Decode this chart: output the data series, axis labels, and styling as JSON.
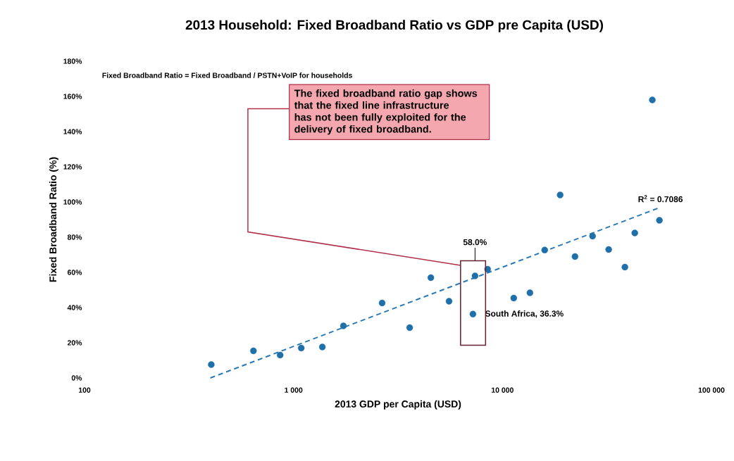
{
  "chart_data": {
    "type": "scatter",
    "title": "2013 Household: Fixed Broadband Ratio vs GDP pre Capita (USD)",
    "subtitle": "Fixed Broadband Ratio = Fixed Broadband / PSTN+VoIP for households",
    "xlabel": "2013 GDP per Capita (USD)",
    "ylabel": "Fixed Broadband Ratio (%)",
    "series": [
      {
        "marker": "circle",
        "color": "#1f6fa8",
        "x": [
          404,
          643,
          863,
          1089,
          1374,
          1733,
          2655,
          3597,
          4541,
          5550,
          7220,
          7390,
          8490,
          11320,
          13530,
          15920,
          18880,
          22230,
          26980,
          32220,
          38530,
          42960,
          52120,
          56360
        ],
        "values": [
          7.6,
          15.4,
          13,
          17,
          17.6,
          29.6,
          42.6,
          28.6,
          57,
          43.6,
          36.3,
          58.0,
          61.8,
          45.4,
          48.4,
          72.7,
          104,
          69,
          80.6,
          73,
          63,
          82.4,
          158,
          89.6
        ]
      },
      {
        "type": "line",
        "marker": "none",
        "color": "#2a7ab8",
        "line_style": "dashed",
        "x": [
          400,
          57000
        ],
        "values": [
          0,
          97
        ]
      }
    ],
    "xlim": [
      100,
      100000
    ],
    "ylim": [
      0,
      180
    ],
    "log": "x",
    "xticks": [
      100,
      {
        "value": 1000,
        "label": "1 000"
      },
      {
        "value": 10000,
        "label": "10 000"
      },
      {
        "value": 100000,
        "label": "100 000"
      }
    ],
    "yticks": [
      {
        "value": 0,
        "label": "0%"
      },
      {
        "value": 20,
        "label": "20%"
      },
      {
        "value": 40,
        "label": "40%"
      },
      {
        "value": 60,
        "label": "60%"
      },
      {
        "value": 80,
        "label": "80%"
      },
      {
        "value": 100,
        "label": "100%"
      },
      {
        "value": 120,
        "label": "120%"
      },
      {
        "value": 140,
        "label": "140%"
      },
      {
        "value": 160,
        "label": "160%"
      },
      {
        "value": 180,
        "label": "180%"
      }
    ],
    "grid": false,
    "annotations": [
      "The fixed broadband ratio gap shows that the fixed line infrastructure has not been fully exploited for the delivery of fixed broadband.",
      "58.0%",
      {
        "text": "South Africa, 36.3%",
        "x": 7220,
        "y": 36.3
      },
      {
        "text": "R$^{2}$ = 0.7086",
        "x": 57000,
        "y": 97
      }
    ]
  }
}
